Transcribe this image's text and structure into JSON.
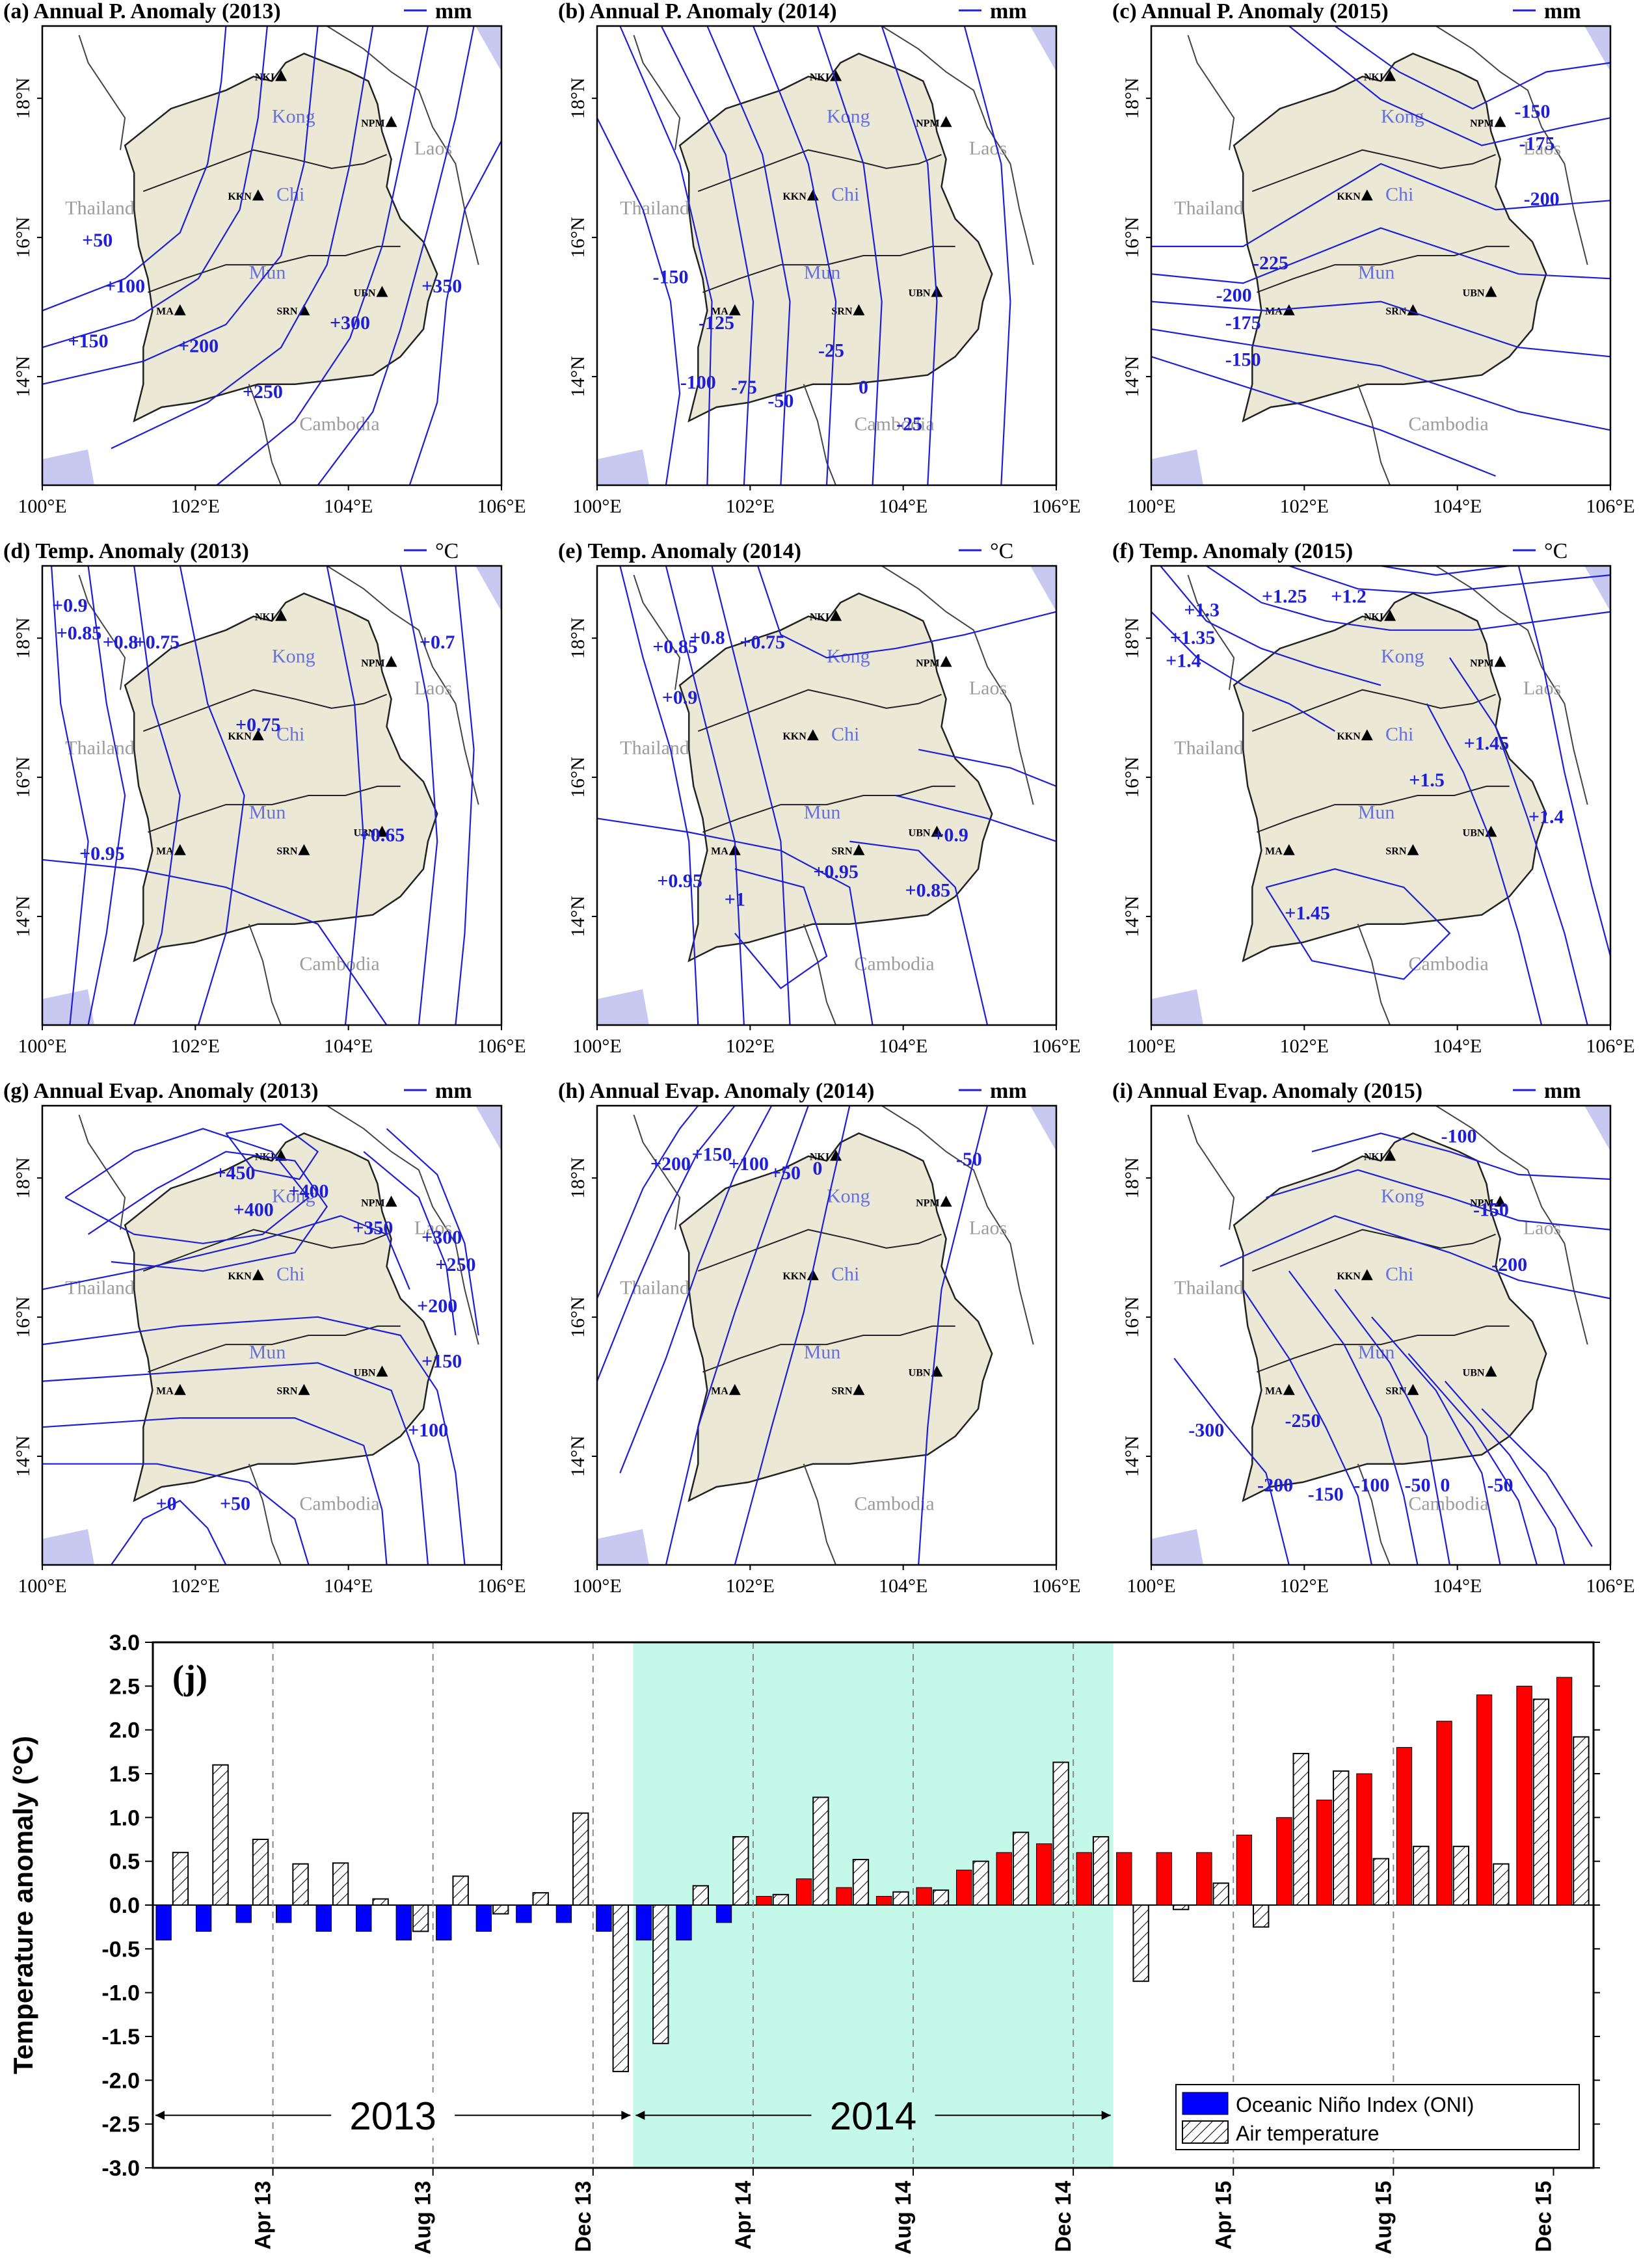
{
  "maps": {
    "longitude_ticks": [
      "100°E",
      "102°E",
      "104°E",
      "106°E"
    ],
    "latitude_ticks": [
      "14°N",
      "16°N",
      "18°N"
    ],
    "place_labels": {
      "thailand": "Thailand",
      "laos": "Laos",
      "cambodia": "Cambodia"
    },
    "rivers": {
      "kong": "Kong",
      "chi": "Chi",
      "mun": "Mun"
    },
    "stations": [
      "NKI",
      "NPM",
      "KKN",
      "UBN",
      "SRN",
      "MA"
    ],
    "panels": [
      {
        "id": "a",
        "title": "(a) Annual P. Anomaly (2013)",
        "unit": "mm",
        "contours": [
          "+50",
          "+100",
          "+150",
          "+200",
          "+250",
          "+300",
          "+350"
        ]
      },
      {
        "id": "b",
        "title": "(b) Annual P. Anomaly (2014)",
        "unit": "mm",
        "contours": [
          "-150",
          "-125",
          "-100",
          "-75",
          "-50",
          "-25",
          "0",
          "-25"
        ]
      },
      {
        "id": "c",
        "title": "(c) Annual P. Anomaly (2015)",
        "unit": "mm",
        "contours": [
          "-150",
          "-175",
          "-200",
          "-225",
          "-200",
          "-175",
          "-150"
        ]
      },
      {
        "id": "d",
        "title": "(d) Temp. Anomaly (2013)",
        "unit": "°C",
        "contours": [
          "+0.9",
          "+0.85",
          "+0.8",
          "+0.75",
          "+0.7",
          "+0.75",
          "+0.95",
          "+0.65"
        ]
      },
      {
        "id": "e",
        "title": "(e) Temp. Anomaly (2014)",
        "unit": "°C",
        "contours": [
          "+0.9",
          "+0.85",
          "+0.8",
          "+0.75",
          "+0.95",
          "+1",
          "+0.95",
          "+0.9",
          "+0.85"
        ]
      },
      {
        "id": "f",
        "title": "(f) Temp. Anomaly (2015)",
        "unit": "°C",
        "contours": [
          "+1.4",
          "+1.35",
          "+1.3",
          "+1.25",
          "+1.2",
          "+1.45",
          "+1.5",
          "+1.45",
          "+1.4"
        ]
      },
      {
        "id": "g",
        "title": "(g) Annual Evap. Anomaly (2013)",
        "unit": "mm",
        "contours": [
          "+450",
          "+400",
          "+400",
          "+350",
          "+300",
          "+250",
          "+200",
          "+150",
          "+100",
          "+50",
          "+0"
        ]
      },
      {
        "id": "h",
        "title": "(h) Annual Evap. Anomaly (2014)",
        "unit": "mm",
        "contours": [
          "+200",
          "+150",
          "+100",
          "+50",
          "0",
          "-50"
        ]
      },
      {
        "id": "i",
        "title": "(i) Annual Evap. Anomaly (2015)",
        "unit": "mm",
        "contours": [
          "-100",
          "-150",
          "-200",
          "-300",
          "-250",
          "-200",
          "-150",
          "-100",
          "-50",
          "0",
          "-50"
        ]
      }
    ]
  },
  "chart_data": {
    "type": "bar",
    "panel_label": "(j)",
    "ylabel": "Temperature anomaly (°C)",
    "ylim": [
      -3.0,
      3.0
    ],
    "yticks": [
      "3.0",
      "2.5",
      "2.0",
      "1.5",
      "1.0",
      "0.5",
      "0.0",
      "-0.5",
      "-1.0",
      "-1.5",
      "-2.0",
      "-2.5",
      "-3.0"
    ],
    "xtick_labels": [
      "Apr 13",
      "Aug 13",
      "Dec 13",
      "Apr 14",
      "Aug 14",
      "Dec 14",
      "Apr 15",
      "Aug 15",
      "Dec 15"
    ],
    "months": [
      "Jan 13",
      "Feb 13",
      "Mar 13",
      "Apr 13",
      "May 13",
      "Jun 13",
      "Jul 13",
      "Aug 13",
      "Sep 13",
      "Oct 13",
      "Nov 13",
      "Dec 13",
      "Jan 14",
      "Feb 14",
      "Mar 14",
      "Apr 14",
      "May 14",
      "Jun 14",
      "Jul 14",
      "Aug 14",
      "Sep 14",
      "Oct 14",
      "Nov 14",
      "Dec 14",
      "Jan 15",
      "Feb 15",
      "Mar 15",
      "Apr 15",
      "May 15",
      "Jun 15",
      "Jul 15",
      "Aug 15",
      "Sep 15",
      "Oct 15",
      "Nov 15",
      "Dec 15"
    ],
    "series": [
      {
        "name": "Oceanic Niño Index (ONI)",
        "values": [
          -0.4,
          -0.3,
          -0.2,
          -0.2,
          -0.3,
          -0.3,
          -0.4,
          -0.4,
          -0.3,
          -0.2,
          -0.2,
          -0.3,
          -0.4,
          -0.4,
          -0.2,
          0.1,
          0.3,
          0.2,
          0.1,
          0.2,
          0.4,
          0.6,
          0.7,
          0.6,
          0.6,
          0.6,
          0.6,
          0.8,
          1.0,
          1.2,
          1.5,
          1.8,
          2.1,
          2.4,
          2.5,
          2.6
        ]
      },
      {
        "name": "Air temperature",
        "values": [
          0.6,
          1.6,
          0.75,
          0.47,
          0.48,
          0.07,
          -0.3,
          0.33,
          -0.1,
          0.14,
          1.05,
          -1.9,
          -1.58,
          0.22,
          0.78,
          0.12,
          1.23,
          0.52,
          0.15,
          0.17,
          0.5,
          0.83,
          1.63,
          0.78,
          -0.87,
          -0.05,
          0.25,
          -0.25,
          1.73,
          1.53,
          0.53,
          0.67,
          0.67,
          0.47,
          2.35,
          1.92
        ]
      }
    ],
    "period_labels": [
      "2013",
      "2014"
    ],
    "colors": {
      "oni_negative": "#0000ff",
      "oni_positive": "#ff0000",
      "highlight": "#c4f9ea"
    }
  }
}
